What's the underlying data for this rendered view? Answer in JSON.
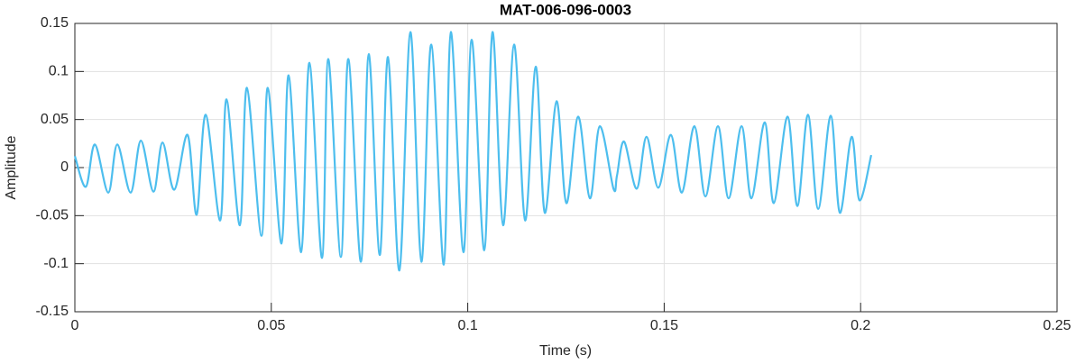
{
  "chart_data": {
    "type": "line",
    "title": "MAT-006-096-0003",
    "x_label": "Time (s)",
    "y_label": "Amplitude",
    "xlim": [
      0,
      0.25
    ],
    "ylim": [
      -0.15,
      0.15
    ],
    "xticks": [
      0,
      0.05,
      0.1,
      0.15,
      0.2,
      0.25
    ],
    "yticks": [
      -0.15,
      -0.1,
      -0.05,
      0,
      0.05,
      0.1,
      0.15
    ],
    "grid": true,
    "series": [
      {
        "color": "#4dbeee",
        "x": [
          0,
          0.0028,
          0.0051,
          0.0085,
          0.0108,
          0.0142,
          0.0168,
          0.02,
          0.0223,
          0.0253,
          0.0287,
          0.031,
          0.0333,
          0.037,
          0.0386,
          0.042,
          0.0438,
          0.0475,
          0.0491,
          0.0526,
          0.0544,
          0.0576,
          0.0597,
          0.0629,
          0.0645,
          0.0677,
          0.0696,
          0.0728,
          0.0748,
          0.0776,
          0.0797,
          0.0826,
          0.0854,
          0.0882,
          0.0907,
          0.0939,
          0.0957,
          0.0989,
          0.101,
          0.1042,
          0.1063,
          0.109,
          0.1118,
          0.1146,
          0.1173,
          0.1196,
          0.1226,
          0.1251,
          0.1281,
          0.1311,
          0.1336,
          0.1371,
          0.138,
          0.1398,
          0.143,
          0.1455,
          0.1485,
          0.1517,
          0.1545,
          0.1577,
          0.1605,
          0.1637,
          0.1664,
          0.1697,
          0.1722,
          0.1756,
          0.1779,
          0.1814,
          0.1839,
          0.1866,
          0.1892,
          0.1924,
          0.1947,
          0.1977,
          0.1997,
          0.2027
        ],
        "values": [
          0.012,
          -0.02,
          0.024,
          -0.026,
          0.024,
          -0.026,
          0.028,
          -0.025,
          0.026,
          -0.023,
          0.034,
          -0.049,
          0.055,
          -0.055,
          0.071,
          -0.06,
          0.083,
          -0.071,
          0.083,
          -0.079,
          0.096,
          -0.088,
          0.109,
          -0.094,
          0.113,
          -0.093,
          0.113,
          -0.098,
          0.118,
          -0.091,
          0.115,
          -0.107,
          0.141,
          -0.098,
          0.128,
          -0.101,
          0.141,
          -0.088,
          0.133,
          -0.086,
          0.141,
          -0.06,
          0.128,
          -0.055,
          0.105,
          -0.047,
          0.069,
          -0.037,
          0.053,
          -0.032,
          0.043,
          -0.022,
          -0.008,
          0.027,
          -0.022,
          0.032,
          -0.021,
          0.034,
          -0.026,
          0.043,
          -0.03,
          0.043,
          -0.032,
          0.043,
          -0.032,
          0.047,
          -0.037,
          0.053,
          -0.04,
          0.055,
          -0.043,
          0.054,
          -0.047,
          0.032,
          -0.034,
          0.013
        ]
      }
    ]
  }
}
